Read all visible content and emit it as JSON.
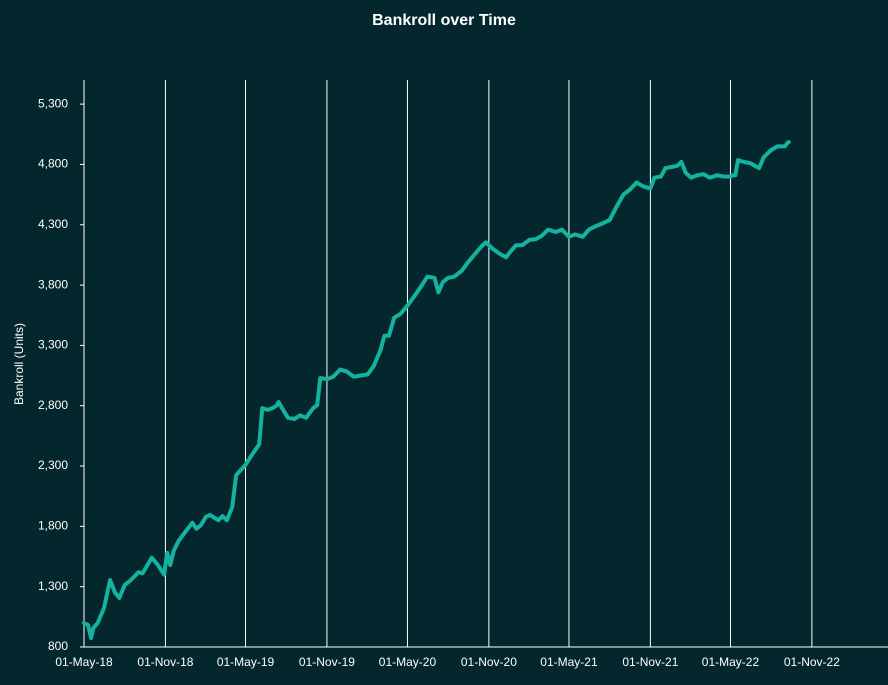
{
  "chart_data": {
    "type": "line",
    "title": "Bankroll over Time",
    "y_label": "Bankroll  (Units)",
    "x": [
      "2018-05-01",
      "2018-05-10",
      "2018-05-17",
      "2018-05-22",
      "2018-06-01",
      "2018-06-15",
      "2018-06-29",
      "2018-07-10",
      "2018-07-20",
      "2018-08-01",
      "2018-08-15",
      "2018-09-01",
      "2018-09-10",
      "2018-09-20",
      "2018-10-01",
      "2018-10-15",
      "2018-10-29",
      "2018-11-05",
      "2018-11-12",
      "2018-11-20",
      "2018-12-01",
      "2018-12-15",
      "2019-01-01",
      "2019-01-10",
      "2019-01-20",
      "2019-02-01",
      "2019-02-10",
      "2019-02-20",
      "2019-03-01",
      "2019-03-10",
      "2019-03-20",
      "2019-04-01",
      "2019-04-10",
      "2019-05-01",
      "2019-05-15",
      "2019-06-01",
      "2019-06-08",
      "2019-06-20",
      "2019-07-01",
      "2019-07-10",
      "2019-07-15",
      "2019-07-25",
      "2019-08-05",
      "2019-08-20",
      "2019-09-01",
      "2019-09-15",
      "2019-10-01",
      "2019-10-10",
      "2019-10-17",
      "2019-11-01",
      "2019-11-15",
      "2019-12-01",
      "2019-12-15",
      "2020-01-01",
      "2020-01-15",
      "2020-02-01",
      "2020-02-15",
      "2020-03-01",
      "2020-03-10",
      "2020-03-20",
      "2020-04-01",
      "2020-04-15",
      "2020-05-01",
      "2020-05-15",
      "2020-06-01",
      "2020-06-15",
      "2020-07-01",
      "2020-07-10",
      "2020-07-20",
      "2020-08-01",
      "2020-08-15",
      "2020-09-01",
      "2020-09-15",
      "2020-10-01",
      "2020-10-15",
      "2020-10-25",
      "2020-11-10",
      "2020-11-25",
      "2020-12-10",
      "2020-12-20",
      "2021-01-01",
      "2021-01-15",
      "2021-02-01",
      "2021-02-15",
      "2021-03-01",
      "2021-03-15",
      "2021-04-01",
      "2021-04-15",
      "2021-05-01",
      "2021-05-15",
      "2021-06-01",
      "2021-06-15",
      "2021-07-01",
      "2021-07-15",
      "2021-08-01",
      "2021-08-15",
      "2021-09-01",
      "2021-09-15",
      "2021-10-01",
      "2021-10-15",
      "2021-11-01",
      "2021-11-10",
      "2021-11-25",
      "2021-12-05",
      "2021-12-20",
      "2022-01-01",
      "2022-01-10",
      "2022-01-20",
      "2022-02-01",
      "2022-02-15",
      "2022-03-01",
      "2022-03-15",
      "2022-04-01",
      "2022-04-15",
      "2022-05-01",
      "2022-05-08",
      "2022-05-12",
      "2022-05-18",
      "2022-06-01",
      "2022-06-15",
      "2022-06-25",
      "2022-07-05",
      "2022-07-15",
      "2022-08-01",
      "2022-08-15",
      "2022-09-01",
      "2022-09-07",
      "2022-09-10"
    ],
    "series": [
      {
        "name": "Bankroll",
        "color": "#14b3a0",
        "values": [
          999,
          982,
          875,
          957,
          1000,
          1120,
          1355,
          1250,
          1206,
          1314,
          1355,
          1420,
          1410,
          1470,
          1540,
          1480,
          1400,
          1580,
          1480,
          1600,
          1680,
          1750,
          1830,
          1780,
          1810,
          1880,
          1895,
          1870,
          1850,
          1885,
          1850,
          1960,
          2225,
          2310,
          2390,
          2480,
          2780,
          2765,
          2780,
          2800,
          2830,
          2765,
          2700,
          2690,
          2720,
          2700,
          2780,
          2805,
          3030,
          3020,
          3040,
          3100,
          3085,
          3040,
          3050,
          3060,
          3130,
          3260,
          3380,
          3380,
          3530,
          3560,
          3630,
          3700,
          3790,
          3870,
          3860,
          3740,
          3825,
          3860,
          3870,
          3920,
          3990,
          4060,
          4120,
          4155,
          4100,
          4060,
          4030,
          4080,
          4130,
          4130,
          4175,
          4180,
          4210,
          4260,
          4240,
          4260,
          4200,
          4220,
          4200,
          4260,
          4290,
          4310,
          4340,
          4440,
          4550,
          4590,
          4650,
          4620,
          4600,
          4690,
          4700,
          4770,
          4780,
          4790,
          4820,
          4730,
          4690,
          4710,
          4720,
          4690,
          4710,
          4700,
          4700,
          4710,
          4710,
          4835,
          4820,
          4810,
          4790,
          4770,
          4860,
          4920,
          4950,
          4950,
          4980,
          4985
        ]
      }
    ],
    "xlim": [
      "2018-05-01",
      "2023-04-22"
    ],
    "xticks": [
      {
        "value": "2018-05-01",
        "label": "01-May-18"
      },
      {
        "value": "2018-11-01",
        "label": "01-Nov-18"
      },
      {
        "value": "2019-05-01",
        "label": "01-May-19"
      },
      {
        "value": "2019-11-01",
        "label": "01-Nov-19"
      },
      {
        "value": "2020-05-01",
        "label": "01-May-20"
      },
      {
        "value": "2020-11-01",
        "label": "01-Nov-20"
      },
      {
        "value": "2021-05-01",
        "label": "01-May-21"
      },
      {
        "value": "2021-11-01",
        "label": "01-Nov-21"
      },
      {
        "value": "2022-05-01",
        "label": "01-May-22"
      },
      {
        "value": "2022-11-01",
        "label": "01-Nov-22"
      }
    ],
    "ylim": [
      800,
      5500
    ],
    "yticks": [
      800,
      {
        "value": 1300,
        "label": "1,300"
      },
      {
        "value": 1800,
        "label": "1,800"
      },
      {
        "value": 2300,
        "label": "2,300"
      },
      {
        "value": 2800,
        "label": "2,800"
      },
      {
        "value": 3300,
        "label": "3,300"
      },
      {
        "value": 3800,
        "label": "3,800"
      },
      {
        "value": 4300,
        "label": "4,300"
      },
      {
        "value": 4800,
        "label": "4,800"
      },
      {
        "value": 5300,
        "label": "5,300"
      }
    ],
    "grid_x": true
  }
}
